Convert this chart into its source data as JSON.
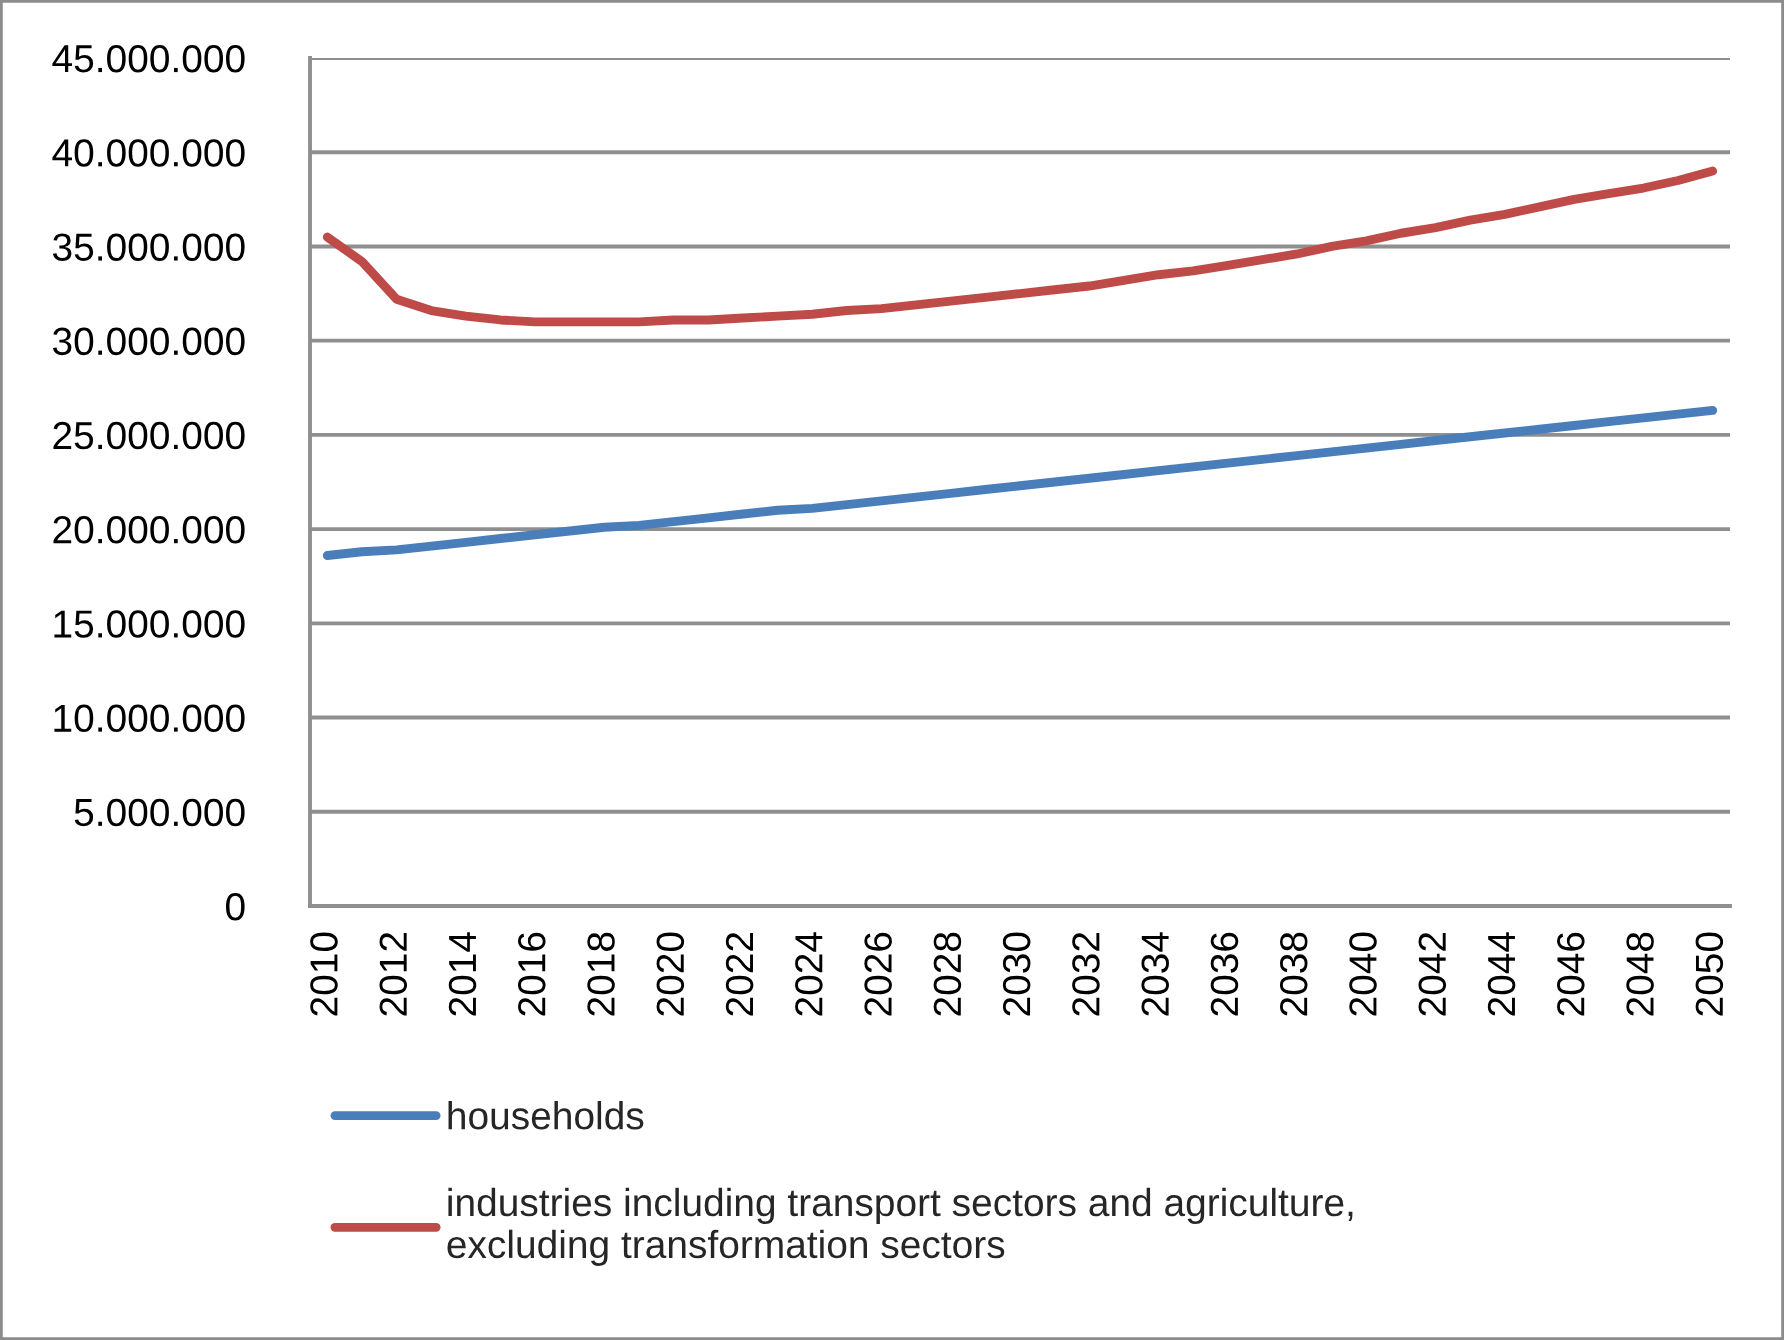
{
  "chart_data": {
    "type": "line",
    "x": [
      2010,
      2011,
      2012,
      2013,
      2014,
      2015,
      2016,
      2017,
      2018,
      2019,
      2020,
      2021,
      2022,
      2023,
      2024,
      2025,
      2026,
      2027,
      2028,
      2029,
      2030,
      2031,
      2032,
      2033,
      2034,
      2035,
      2036,
      2037,
      2038,
      2039,
      2040,
      2041,
      2042,
      2043,
      2044,
      2045,
      2046,
      2047,
      2048,
      2049,
      2050
    ],
    "series": [
      {
        "name": "households",
        "color": "#4a7ebb",
        "values": [
          18600000,
          18800000,
          18900000,
          19100000,
          19300000,
          19500000,
          19700000,
          19900000,
          20100000,
          20200000,
          20400000,
          20600000,
          20800000,
          21000000,
          21100000,
          21300000,
          21500000,
          21700000,
          21900000,
          22100000,
          22300000,
          22500000,
          22700000,
          22900000,
          23100000,
          23300000,
          23500000,
          23700000,
          23900000,
          24100000,
          24300000,
          24500000,
          24700000,
          24900000,
          25100000,
          25300000,
          25500000,
          25700000,
          25900000,
          26100000,
          26300000
        ]
      },
      {
        "name": "industries including transport sectors and agriculture,\nexcluding transformation sectors",
        "color": "#be4b48",
        "values": [
          35500000,
          34200000,
          32200000,
          31600000,
          31300000,
          31100000,
          31000000,
          31000000,
          31000000,
          31000000,
          31100000,
          31100000,
          31200000,
          31300000,
          31400000,
          31600000,
          31700000,
          31900000,
          32100000,
          32300000,
          32500000,
          32700000,
          32900000,
          33200000,
          33500000,
          33700000,
          34000000,
          34300000,
          34600000,
          35000000,
          35300000,
          35700000,
          36000000,
          36400000,
          36700000,
          37100000,
          37500000,
          37800000,
          38100000,
          38500000,
          39000000
        ]
      }
    ],
    "xlim": [
      2009.5,
      2050.5
    ],
    "xticks": [
      2010,
      2012,
      2014,
      2016,
      2018,
      2020,
      2022,
      2024,
      2026,
      2028,
      2030,
      2032,
      2034,
      2036,
      2038,
      2040,
      2042,
      2044,
      2046,
      2048,
      2050
    ],
    "ylim": [
      0,
      45000000
    ],
    "yticks": [
      0,
      {
        "value": 5000000,
        "label": "5.000.000"
      },
      {
        "value": 10000000,
        "label": "10.000.000"
      },
      {
        "value": 15000000,
        "label": "15.000.000"
      },
      {
        "value": 20000000,
        "label": "20.000.000"
      },
      {
        "value": 25000000,
        "label": "25.000.000"
      },
      {
        "value": 30000000,
        "label": "30.000.000"
      },
      {
        "value": 35000000,
        "label": "35.000.000"
      },
      {
        "value": 40000000,
        "label": "40.000.000"
      },
      {
        "value": 45000000,
        "label": "45.000.000"
      }
    ],
    "grid": "y",
    "legend": "bottom",
    "line_style": "solid"
  }
}
